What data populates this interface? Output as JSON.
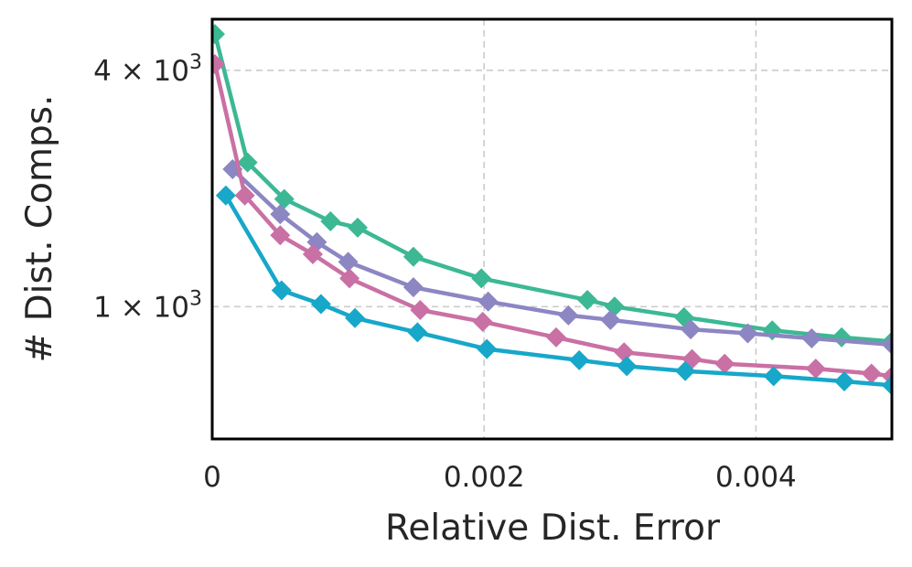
{
  "chart_data": {
    "type": "line",
    "title": "",
    "xlabel": "Relative Dist. Error",
    "ylabel": "# Dist. Comps.",
    "xlim": [
      0,
      0.005
    ],
    "ylim": [
      460,
      5400
    ],
    "yscale": "log",
    "grid": true,
    "legend": "none",
    "marker": "diamond",
    "x_ticks": [
      {
        "value": 0,
        "label": "0"
      },
      {
        "value": 0.002,
        "label": "0.002"
      },
      {
        "value": 0.004,
        "label": "0.004"
      }
    ],
    "y_ticks": [
      {
        "value": 1000,
        "base": "1",
        "exp": "3"
      },
      {
        "value": 4000,
        "base": "4",
        "exp": "3"
      }
    ],
    "series": [
      {
        "name": "series-green",
        "color": "#3cb894",
        "points": [
          [
            2e-05,
            4950
          ],
          [
            0.00026,
            2330
          ],
          [
            0.00053,
            1880
          ],
          [
            0.00087,
            1650
          ],
          [
            0.00107,
            1590
          ],
          [
            0.00148,
            1340
          ],
          [
            0.00198,
            1180
          ],
          [
            0.00276,
            1040
          ],
          [
            0.00296,
            1000
          ],
          [
            0.00347,
            940
          ],
          [
            0.00412,
            870
          ],
          [
            0.00463,
            835
          ],
          [
            0.005,
            815
          ]
        ]
      },
      {
        "name": "series-purple",
        "color": "#8c86c3",
        "points": [
          [
            0.00015,
            2240
          ],
          [
            0.0005,
            1720
          ],
          [
            0.00077,
            1460
          ],
          [
            0.001,
            1300
          ],
          [
            0.00148,
            1120
          ],
          [
            0.00203,
            1030
          ],
          [
            0.00262,
            950
          ],
          [
            0.00293,
            925
          ],
          [
            0.00352,
            875
          ],
          [
            0.00394,
            855
          ],
          [
            0.00441,
            830
          ],
          [
            0.005,
            800
          ]
        ]
      },
      {
        "name": "series-pink",
        "color": "#c970a4",
        "points": [
          [
            2e-05,
            4150
          ],
          [
            0.00024,
            1920
          ],
          [
            0.0005,
            1520
          ],
          [
            0.00074,
            1360
          ],
          [
            0.00101,
            1180
          ],
          [
            0.00153,
            980
          ],
          [
            0.00199,
            915
          ],
          [
            0.00253,
            835
          ],
          [
            0.00303,
            765
          ],
          [
            0.00353,
            735
          ],
          [
            0.00377,
            715
          ],
          [
            0.00444,
            695
          ],
          [
            0.00485,
            675
          ],
          [
            0.005,
            665
          ]
        ]
      },
      {
        "name": "series-blue",
        "color": "#17a7c9",
        "points": [
          [
            0.0001,
            1920
          ],
          [
            0.00051,
            1100
          ],
          [
            0.0008,
            1015
          ],
          [
            0.00105,
            935
          ],
          [
            0.00151,
            860
          ],
          [
            0.00202,
            780
          ],
          [
            0.0027,
            730
          ],
          [
            0.00305,
            705
          ],
          [
            0.00348,
            685
          ],
          [
            0.00413,
            665
          ],
          [
            0.00465,
            645
          ],
          [
            0.005,
            630
          ]
        ]
      }
    ]
  }
}
